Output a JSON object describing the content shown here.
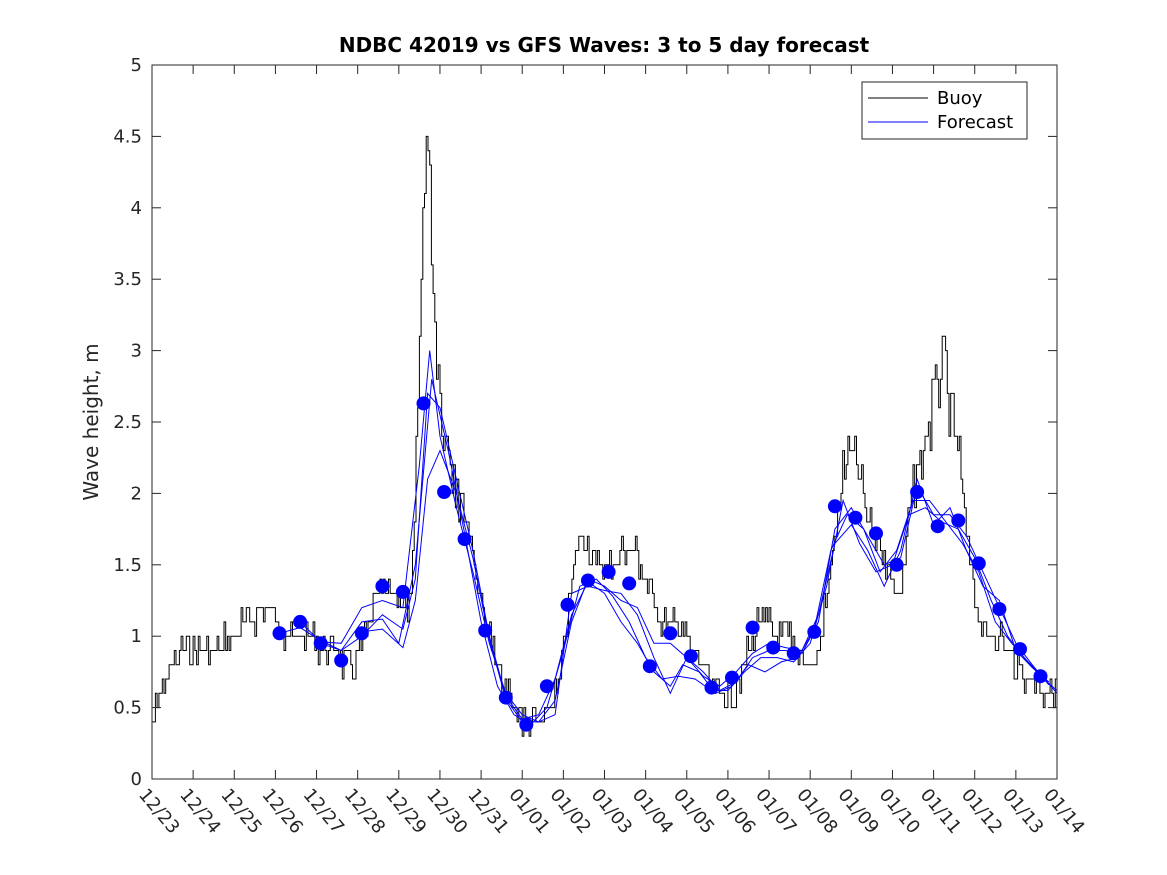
{
  "chart_data": {
    "type": "line",
    "title": "NDBC 42019 vs GFS Waves: 3 to 5 day forecast",
    "xlabel": "",
    "ylabel": "Wave height, m",
    "xlim": [
      0,
      22
    ],
    "ylim": [
      0,
      5
    ],
    "xticks": [
      {
        "v": 0,
        "label": "12/23"
      },
      {
        "v": 1,
        "label": "12/24"
      },
      {
        "v": 2,
        "label": "12/25"
      },
      {
        "v": 3,
        "label": "12/26"
      },
      {
        "v": 4,
        "label": "12/27"
      },
      {
        "v": 5,
        "label": "12/28"
      },
      {
        "v": 6,
        "label": "12/29"
      },
      {
        "v": 7,
        "label": "12/30"
      },
      {
        "v": 8,
        "label": "12/31"
      },
      {
        "v": 9,
        "label": "01/01"
      },
      {
        "v": 10,
        "label": "01/02"
      },
      {
        "v": 11,
        "label": "01/03"
      },
      {
        "v": 12,
        "label": "01/04"
      },
      {
        "v": 13,
        "label": "01/05"
      },
      {
        "v": 14,
        "label": "01/06"
      },
      {
        "v": 15,
        "label": "01/07"
      },
      {
        "v": 16,
        "label": "01/08"
      },
      {
        "v": 17,
        "label": "01/09"
      },
      {
        "v": 18,
        "label": "01/10"
      },
      {
        "v": 19,
        "label": "01/11"
      },
      {
        "v": 20,
        "label": "01/12"
      },
      {
        "v": 21,
        "label": "01/13"
      },
      {
        "v": 22,
        "label": "01/14"
      }
    ],
    "yticks": [
      {
        "v": 0,
        "label": "0"
      },
      {
        "v": 0.5,
        "label": "0.5"
      },
      {
        "v": 1,
        "label": "1"
      },
      {
        "v": 1.5,
        "label": "1.5"
      },
      {
        "v": 2,
        "label": "2"
      },
      {
        "v": 2.5,
        "label": "2.5"
      },
      {
        "v": 3,
        "label": "3"
      },
      {
        "v": 3.5,
        "label": "3.5"
      },
      {
        "v": 4,
        "label": "4"
      },
      {
        "v": 4.5,
        "label": "4.5"
      },
      {
        "v": 5,
        "label": "5"
      }
    ],
    "legend": {
      "position": "top-right",
      "entries": [
        {
          "label": "Buoy",
          "color": "#000000"
        },
        {
          "label": "Forecast",
          "color": "#0000ff"
        }
      ]
    },
    "colors": {
      "buoy": "#000000",
      "forecast": "#0000ff",
      "markers": "#0000ff"
    },
    "buoy_knots": [
      [
        0,
        0.4
      ],
      [
        0.1,
        0.5
      ],
      [
        0.3,
        0.7
      ],
      [
        0.5,
        0.8
      ],
      [
        0.8,
        0.9
      ],
      [
        1.0,
        0.85
      ],
      [
        1.5,
        0.9
      ],
      [
        2.0,
        1.0
      ],
      [
        2.5,
        1.15
      ],
      [
        2.8,
        1.2
      ],
      [
        3.2,
        1.05
      ],
      [
        3.6,
        1.0
      ],
      [
        4.0,
        0.95
      ],
      [
        4.3,
        0.9
      ],
      [
        4.6,
        0.85
      ],
      [
        4.9,
        0.75
      ],
      [
        5.1,
        0.95
      ],
      [
        5.5,
        1.25
      ],
      [
        5.9,
        1.3
      ],
      [
        6.3,
        1.15
      ],
      [
        6.45,
        2.5
      ],
      [
        6.6,
        4.2
      ],
      [
        6.68,
        4.6
      ],
      [
        6.75,
        4.1
      ],
      [
        6.85,
        3.3
      ],
      [
        7.0,
        2.7
      ],
      [
        7.2,
        2.3
      ],
      [
        7.5,
        2.0
      ],
      [
        7.8,
        1.6
      ],
      [
        8.0,
        1.2
      ],
      [
        8.3,
        0.85
      ],
      [
        8.6,
        0.6
      ],
      [
        9.0,
        0.45
      ],
      [
        9.3,
        0.35
      ],
      [
        9.6,
        0.45
      ],
      [
        9.9,
        0.7
      ],
      [
        10.1,
        1.1
      ],
      [
        10.3,
        1.6
      ],
      [
        10.5,
        1.75
      ],
      [
        10.8,
        1.5
      ],
      [
        11.2,
        1.5
      ],
      [
        11.5,
        1.6
      ],
      [
        11.8,
        1.55
      ],
      [
        12.0,
        1.35
      ],
      [
        12.2,
        1.3
      ],
      [
        12.4,
        1.05
      ],
      [
        12.8,
        1.1
      ],
      [
        13.1,
        0.9
      ],
      [
        13.4,
        0.8
      ],
      [
        13.6,
        0.55
      ],
      [
        14.0,
        0.55
      ],
      [
        14.3,
        0.7
      ],
      [
        14.6,
        1.0
      ],
      [
        14.9,
        1.15
      ],
      [
        15.2,
        0.95
      ],
      [
        15.5,
        0.95
      ],
      [
        15.8,
        0.9
      ],
      [
        16.0,
        0.75
      ],
      [
        16.2,
        0.9
      ],
      [
        16.5,
        1.5
      ],
      [
        16.8,
        2.1
      ],
      [
        17.0,
        2.35
      ],
      [
        17.2,
        2.1
      ],
      [
        17.4,
        1.8
      ],
      [
        17.6,
        1.7
      ],
      [
        17.9,
        1.5
      ],
      [
        18.0,
        1.25
      ],
      [
        18.2,
        1.25
      ],
      [
        18.4,
        1.9
      ],
      [
        18.6,
        2.2
      ],
      [
        18.9,
        2.5
      ],
      [
        19.1,
        2.8
      ],
      [
        19.25,
        2.9
      ],
      [
        19.4,
        2.55
      ],
      [
        19.6,
        2.3
      ],
      [
        19.8,
        1.7
      ],
      [
        20.0,
        1.3
      ],
      [
        20.2,
        1.0
      ],
      [
        20.5,
        1.05
      ],
      [
        20.8,
        0.9
      ],
      [
        21.2,
        0.75
      ],
      [
        21.6,
        0.65
      ],
      [
        22.0,
        0.6
      ]
    ],
    "forecast_markers": [
      [
        3.1,
        1.02
      ],
      [
        3.6,
        1.1
      ],
      [
        4.1,
        0.95
      ],
      [
        4.6,
        0.83
      ],
      [
        5.1,
        1.02
      ],
      [
        5.6,
        1.35
      ],
      [
        6.1,
        1.31
      ],
      [
        6.6,
        2.63
      ],
      [
        7.1,
        2.01
      ],
      [
        7.6,
        1.68
      ],
      [
        8.1,
        1.04
      ],
      [
        8.6,
        0.57
      ],
      [
        9.1,
        0.38
      ],
      [
        9.6,
        0.65
      ],
      [
        10.1,
        1.22
      ],
      [
        10.6,
        1.39
      ],
      [
        11.1,
        1.45
      ],
      [
        11.6,
        1.37
      ],
      [
        12.1,
        0.79
      ],
      [
        12.6,
        1.02
      ],
      [
        13.1,
        0.86
      ],
      [
        13.6,
        0.64
      ],
      [
        14.1,
        0.71
      ],
      [
        14.6,
        1.06
      ],
      [
        15.1,
        0.92
      ],
      [
        15.6,
        0.88
      ],
      [
        16.1,
        1.03
      ],
      [
        16.6,
        1.91
      ],
      [
        17.1,
        1.83
      ],
      [
        17.6,
        1.72
      ],
      [
        18.1,
        1.5
      ],
      [
        18.6,
        2.01
      ],
      [
        19.1,
        1.77
      ],
      [
        19.6,
        1.81
      ],
      [
        20.1,
        1.51
      ],
      [
        20.6,
        1.19
      ],
      [
        21.1,
        0.91
      ],
      [
        21.6,
        0.72
      ]
    ],
    "forecast_runs": [
      [
        [
          3.1,
          1.02
        ],
        [
          3.6,
          1.06
        ],
        [
          4.1,
          0.97
        ],
        [
          4.6,
          0.9
        ],
        [
          5.1,
          1.1
        ],
        [
          5.6,
          1.12
        ],
        [
          6.0,
          0.95
        ],
        [
          6.4,
          1.5
        ],
        [
          6.8,
          2.8
        ],
        [
          7.2,
          2.3
        ],
        [
          7.6,
          1.72
        ],
        [
          8.0,
          1.1
        ],
        [
          8.4,
          0.65
        ],
        [
          8.8,
          0.45
        ],
        [
          9.2,
          0.38
        ],
        [
          9.6,
          0.5
        ],
        [
          10.0,
          0.9
        ],
        [
          10.4,
          1.35
        ],
        [
          10.8,
          1.4
        ],
        [
          11.2,
          1.28
        ],
        [
          11.6,
          1.1
        ],
        [
          12.0,
          0.85
        ],
        [
          12.4,
          0.7
        ],
        [
          12.8,
          0.72
        ],
        [
          13.2,
          0.7
        ],
        [
          13.6,
          0.62
        ],
        [
          14.0,
          0.62
        ],
        [
          14.4,
          0.75
        ],
        [
          14.8,
          0.85
        ],
        [
          15.2,
          0.85
        ],
        [
          15.6,
          0.82
        ],
        [
          16.0,
          0.95
        ],
        [
          16.4,
          1.35
        ],
        [
          16.8,
          1.95
        ],
        [
          17.2,
          1.65
        ],
        [
          17.6,
          1.45
        ],
        [
          18.0,
          1.5
        ],
        [
          18.4,
          1.85
        ],
        [
          18.8,
          1.9
        ],
        [
          19.2,
          1.8
        ],
        [
          19.6,
          1.75
        ],
        [
          20.0,
          1.55
        ],
        [
          20.4,
          1.25
        ],
        [
          20.8,
          1.0
        ],
        [
          21.2,
          0.85
        ],
        [
          21.6,
          0.72
        ],
        [
          22.0,
          0.62
        ]
      ],
      [
        [
          3.6,
          1.1
        ],
        [
          4.1,
          0.96
        ],
        [
          4.6,
          0.95
        ],
        [
          5.1,
          1.2
        ],
        [
          5.6,
          1.25
        ],
        [
          6.1,
          1.2
        ],
        [
          6.5,
          2.2
        ],
        [
          6.75,
          3.0
        ],
        [
          7.0,
          2.4
        ],
        [
          7.4,
          1.9
        ],
        [
          7.8,
          1.45
        ],
        [
          8.2,
          0.95
        ],
        [
          8.6,
          0.6
        ],
        [
          9.0,
          0.45
        ],
        [
          9.4,
          0.4
        ],
        [
          9.8,
          0.55
        ],
        [
          10.2,
          1.1
        ],
        [
          10.6,
          1.4
        ],
        [
          11.0,
          1.35
        ],
        [
          11.4,
          1.25
        ],
        [
          11.8,
          1.2
        ],
        [
          12.2,
          0.95
        ],
        [
          12.6,
          0.95
        ],
        [
          13.0,
          0.85
        ],
        [
          13.4,
          0.75
        ],
        [
          13.8,
          0.62
        ],
        [
          14.2,
          0.68
        ],
        [
          14.6,
          0.85
        ],
        [
          15.0,
          0.9
        ],
        [
          15.4,
          0.9
        ],
        [
          15.8,
          0.88
        ],
        [
          16.2,
          1.1
        ],
        [
          16.6,
          1.75
        ],
        [
          17.0,
          1.9
        ],
        [
          17.4,
          1.7
        ],
        [
          17.8,
          1.5
        ],
        [
          18.2,
          1.55
        ],
        [
          18.6,
          2.05
        ],
        [
          19.0,
          1.85
        ],
        [
          19.4,
          1.85
        ],
        [
          19.8,
          1.7
        ],
        [
          20.2,
          1.45
        ],
        [
          20.6,
          1.2
        ],
        [
          21.0,
          0.95
        ],
        [
          21.4,
          0.8
        ],
        [
          21.8,
          0.66
        ]
      ],
      [
        [
          4.1,
          0.95
        ],
        [
          4.6,
          0.9
        ],
        [
          5.1,
          1.0
        ],
        [
          5.6,
          1.15
        ],
        [
          6.1,
          1.05
        ],
        [
          6.4,
          1.4
        ],
        [
          6.7,
          2.7
        ],
        [
          7.0,
          2.6
        ],
        [
          7.4,
          2.1
        ],
        [
          7.8,
          1.6
        ],
        [
          8.2,
          1.0
        ],
        [
          8.6,
          0.58
        ],
        [
          9.0,
          0.42
        ],
        [
          9.4,
          0.45
        ],
        [
          9.8,
          0.7
        ],
        [
          10.2,
          1.15
        ],
        [
          10.6,
          1.38
        ],
        [
          11.0,
          1.3
        ],
        [
          11.4,
          1.1
        ],
        [
          11.8,
          0.95
        ],
        [
          12.2,
          0.75
        ],
        [
          12.6,
          0.65
        ],
        [
          12.9,
          0.8
        ],
        [
          13.3,
          0.75
        ],
        [
          13.7,
          0.6
        ],
        [
          14.1,
          0.65
        ],
        [
          14.5,
          0.8
        ],
        [
          14.9,
          0.75
        ],
        [
          15.3,
          0.82
        ],
        [
          15.7,
          0.85
        ],
        [
          16.1,
          1.05
        ],
        [
          16.5,
          1.6
        ],
        [
          16.9,
          1.85
        ],
        [
          17.3,
          1.75
        ],
        [
          17.7,
          1.45
        ],
        [
          18.1,
          1.6
        ],
        [
          18.5,
          1.95
        ],
        [
          18.9,
          1.95
        ],
        [
          19.3,
          1.8
        ],
        [
          19.7,
          1.65
        ],
        [
          20.1,
          1.45
        ],
        [
          20.5,
          1.1
        ],
        [
          20.9,
          0.95
        ],
        [
          21.3,
          0.82
        ],
        [
          21.7,
          0.7
        ],
        [
          22.0,
          0.6
        ]
      ],
      [
        [
          5.1,
          1.03
        ],
        [
          5.6,
          1.05
        ],
        [
          6.1,
          0.92
        ],
        [
          6.4,
          1.25
        ],
        [
          6.7,
          2.1
        ],
        [
          7.0,
          2.3
        ],
        [
          7.4,
          2.0
        ],
        [
          7.8,
          1.55
        ],
        [
          8.2,
          0.98
        ],
        [
          8.6,
          0.56
        ],
        [
          9.0,
          0.4
        ],
        [
          9.4,
          0.4
        ],
        [
          9.8,
          0.45
        ],
        [
          10.2,
          1.3
        ],
        [
          10.6,
          1.35
        ],
        [
          11.0,
          1.32
        ],
        [
          11.4,
          1.3
        ],
        [
          11.8,
          1.15
        ],
        [
          12.2,
          0.85
        ],
        [
          12.6,
          0.6
        ],
        [
          13.0,
          0.85
        ],
        [
          13.4,
          0.72
        ],
        [
          13.8,
          0.65
        ],
        [
          14.2,
          0.75
        ],
        [
          14.6,
          0.88
        ],
        [
          15.0,
          0.95
        ],
        [
          15.4,
          0.92
        ],
        [
          15.8,
          0.9
        ],
        [
          16.2,
          1.15
        ],
        [
          16.6,
          1.65
        ],
        [
          17.0,
          1.78
        ],
        [
          17.4,
          1.6
        ],
        [
          17.8,
          1.35
        ],
        [
          18.2,
          1.6
        ],
        [
          18.6,
          2.1
        ],
        [
          19.0,
          1.78
        ],
        [
          19.4,
          1.9
        ],
        [
          19.8,
          1.6
        ],
        [
          20.2,
          1.35
        ],
        [
          20.6,
          1.25
        ],
        [
          21.0,
          0.9
        ],
        [
          21.4,
          0.78
        ],
        [
          21.8,
          0.68
        ]
      ]
    ]
  }
}
